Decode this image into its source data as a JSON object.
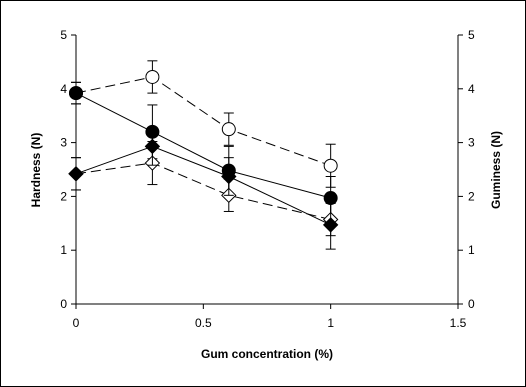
{
  "chart_data": {
    "type": "line",
    "title": "",
    "xlabel": "Gum concentration (%)",
    "ylabel": "Hardness (N)",
    "y2label": "Guminess (N)",
    "xlim": [
      0,
      1.5
    ],
    "ylim": [
      0,
      5
    ],
    "y2lim": [
      0,
      5
    ],
    "xticks": [
      "0",
      "0.5",
      "1",
      "1.5"
    ],
    "yticks": [
      "0",
      "1",
      "2",
      "3",
      "4",
      "5"
    ],
    "y2ticks": [
      "0",
      "1",
      "2",
      "3",
      "4",
      "5"
    ],
    "grid": false,
    "legend": "none",
    "series": [
      {
        "marker": "open-circle",
        "line": "dashed",
        "axis": "left",
        "x": [
          0,
          0.3,
          0.6,
          1.0
        ],
        "y": [
          3.92,
          4.22,
          3.25,
          2.57
        ],
        "err": [
          0.2,
          0.3,
          0.3,
          0.4
        ],
        "color": "#000000"
      },
      {
        "marker": "filled-circle",
        "line": "solid",
        "axis": "right",
        "x": [
          0,
          0.3,
          0.6,
          1.0
        ],
        "y": [
          3.92,
          3.2,
          2.48,
          1.97
        ],
        "err": [
          0.2,
          0.5,
          0.45,
          0.4
        ],
        "color": "#000000"
      },
      {
        "marker": "open-diamond",
        "line": "dashed",
        "axis": "left",
        "x": [
          0,
          0.3,
          0.6,
          1.0
        ],
        "y": [
          2.42,
          2.62,
          2.02,
          1.57
        ],
        "err": [
          0.3,
          0.4,
          0.3,
          0.3
        ],
        "color": "#000000"
      },
      {
        "marker": "filled-diamond",
        "line": "solid",
        "axis": "right",
        "x": [
          0,
          0.3,
          0.6,
          1.0
        ],
        "y": [
          2.42,
          2.93,
          2.37,
          1.47
        ],
        "err": [
          0.3,
          0.35,
          0.35,
          0.45
        ],
        "color": "#000000"
      }
    ]
  }
}
